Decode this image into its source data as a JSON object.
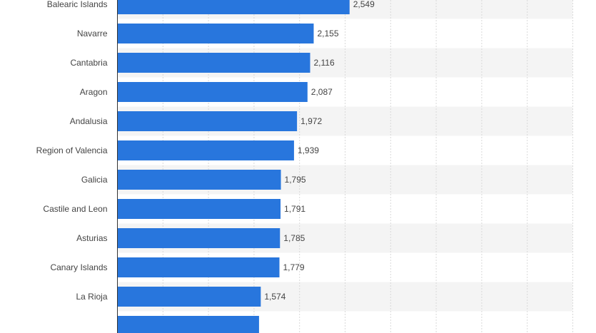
{
  "chart_data": {
    "type": "bar",
    "orientation": "horizontal",
    "categories": [
      "Balearic Islands",
      "Navarre",
      "Cantabria",
      "Aragon",
      "Andalusia",
      "Region of Valencia",
      "Galicia",
      "Castile and Leon",
      "Asturias",
      "Canary Islands",
      "La Rioja",
      ""
    ],
    "values": [
      2549,
      2155,
      2116,
      2087,
      1972,
      1939,
      1795,
      1791,
      1785,
      1779,
      1574,
      1555
    ],
    "value_labels": [
      "2,549",
      "2,155",
      "2,116",
      "2,087",
      "1,972",
      "1,939",
      "1,795",
      "1,791",
      "1,785",
      "1,779",
      "1,574",
      ""
    ],
    "xlim": [
      0,
      5000
    ],
    "grid": true,
    "bar_color": "#2876dd",
    "stripe_color": "#f4f4f4"
  }
}
